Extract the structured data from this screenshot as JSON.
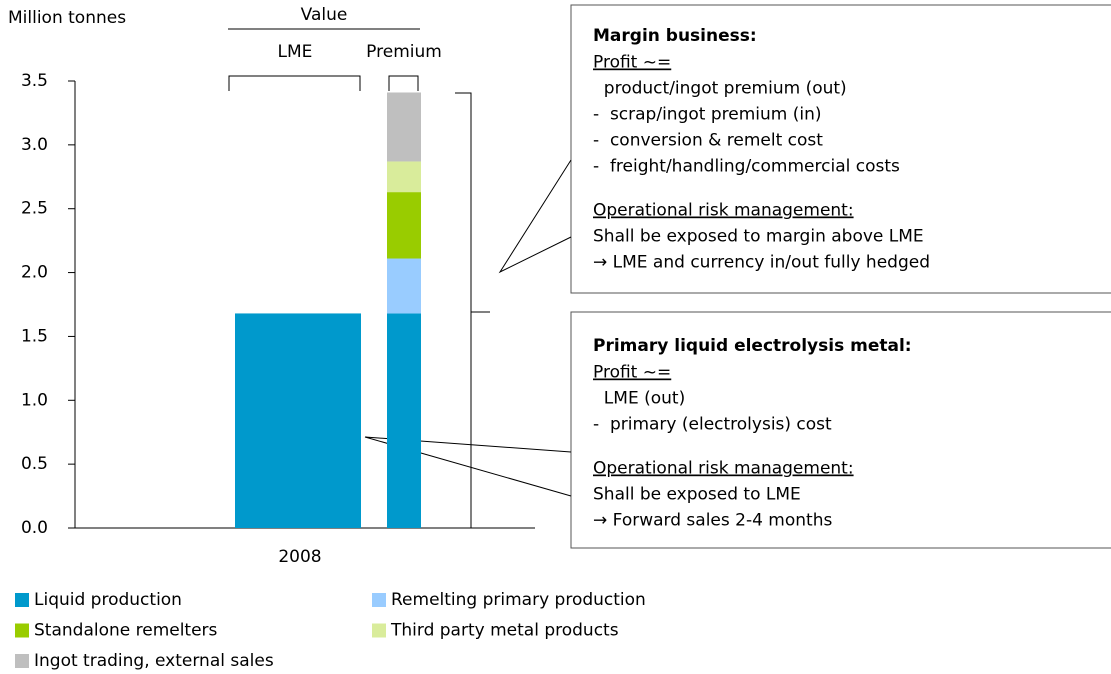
{
  "chart_data": {
    "type": "stacked_bar",
    "y_axis_label": "Million tonnes",
    "x_label": "2008",
    "group_label": "Value",
    "categories": [
      "LME",
      "Premium"
    ],
    "series": [
      {
        "name": "Liquid production",
        "color": "#0099cc",
        "values": [
          1.68,
          1.68
        ]
      },
      {
        "name": "Remelting primary production",
        "color": "#99ccff",
        "values": [
          null,
          0.43
        ]
      },
      {
        "name": "Standalone remelters",
        "color": "#99cc00",
        "values": [
          null,
          0.52
        ]
      },
      {
        "name": "Third party metal products",
        "color": "#d9ec9b",
        "values": [
          null,
          0.24
        ]
      },
      {
        "name": "Ingot trading, external sales",
        "color": "#bfbfbf",
        "values": [
          null,
          0.54
        ]
      }
    ],
    "ylim": [
      0,
      3.5
    ],
    "yticks": [
      {
        "value": 0,
        "label": "0.0"
      },
      0.5,
      {
        "value": 1,
        "label": "1.0"
      },
      1.5,
      {
        "value": 2,
        "label": "2.0"
      },
      2.5,
      {
        "value": 3,
        "label": "3.0"
      },
      3.5
    ],
    "annotations": [
      {
        "title": "Margin business:",
        "profit_heading": "Profit ~=",
        "profit_lines": [
          "  product/ingot premium (out)",
          "-  scrap/ingot premium (in)",
          "-  conversion & remelt cost",
          "-  freight/handling/commercial costs"
        ],
        "risk_heading": "Operational risk management:",
        "risk_lines": [
          "Shall be exposed to margin above LME",
          "→ LME and currency in/out fully hedged"
        ]
      },
      {
        "title": "Primary liquid electrolysis metal:",
        "profit_heading": "Profit ~=",
        "profit_lines": [
          "  LME (out)",
          "-  primary (electrolysis) cost"
        ],
        "risk_heading": "Operational risk management:",
        "risk_lines": [
          "Shall be exposed to LME",
          "→ Forward sales 2-4 months"
        ]
      }
    ]
  }
}
